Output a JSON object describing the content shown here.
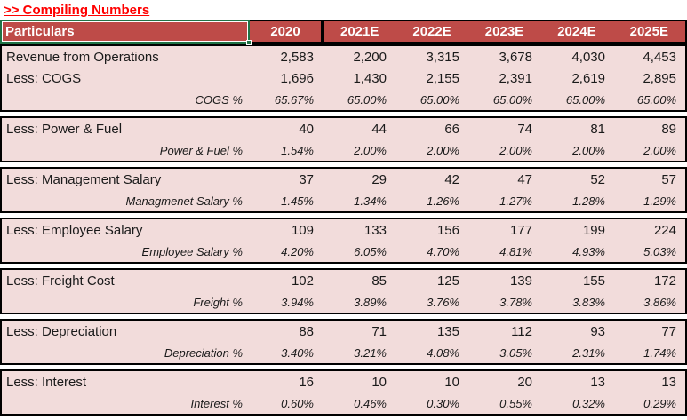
{
  "title": ">> Compiling Numbers",
  "colors": {
    "header_background": "#be4b48",
    "section_background": "#f2dcdb",
    "title_text": "#ff0000",
    "selection_border": "#217346",
    "section_border": "#000000",
    "header_text": "#ffffff"
  },
  "selection": {
    "active_cell": "Particulars"
  },
  "table": {
    "header": {
      "particulars": "Particulars",
      "years": [
        "2020",
        "2021E",
        "2022E",
        "2023E",
        "2024E",
        "2025E"
      ]
    },
    "sections": [
      {
        "rows": [
          {
            "label": "Revenue from Operations",
            "type": "value",
            "values": [
              "2,583",
              "2,200",
              "3,315",
              "3,678",
              "4,030",
              "4,453"
            ]
          },
          {
            "label": "Less: COGS",
            "type": "value",
            "values": [
              "1,696",
              "1,430",
              "2,155",
              "2,391",
              "2,619",
              "2,895"
            ]
          },
          {
            "label": "COGS %",
            "type": "percent",
            "values": [
              "65.67%",
              "65.00%",
              "65.00%",
              "65.00%",
              "65.00%",
              "65.00%"
            ]
          }
        ]
      },
      {
        "rows": [
          {
            "label": "Less: Power & Fuel",
            "type": "value",
            "values": [
              "40",
              "44",
              "66",
              "74",
              "81",
              "89"
            ]
          },
          {
            "label": "Power & Fuel %",
            "type": "percent",
            "values": [
              "1.54%",
              "2.00%",
              "2.00%",
              "2.00%",
              "2.00%",
              "2.00%"
            ]
          }
        ]
      },
      {
        "rows": [
          {
            "label": "Less: Management Salary",
            "type": "value",
            "values": [
              "37",
              "29",
              "42",
              "47",
              "52",
              "57"
            ]
          },
          {
            "label": "Managmenet Salary %",
            "type": "percent",
            "values": [
              "1.45%",
              "1.34%",
              "1.26%",
              "1.27%",
              "1.28%",
              "1.29%"
            ]
          }
        ]
      },
      {
        "rows": [
          {
            "label": "Less: Employee Salary",
            "type": "value",
            "values": [
              "109",
              "133",
              "156",
              "177",
              "199",
              "224"
            ]
          },
          {
            "label": "Employee Salary %",
            "type": "percent",
            "values": [
              "4.20%",
              "6.05%",
              "4.70%",
              "4.81%",
              "4.93%",
              "5.03%"
            ]
          }
        ]
      },
      {
        "rows": [
          {
            "label": "Less: Freight Cost",
            "type": "value",
            "values": [
              "102",
              "85",
              "125",
              "139",
              "155",
              "172"
            ]
          },
          {
            "label": "Freight %",
            "type": "percent",
            "values": [
              "3.94%",
              "3.89%",
              "3.76%",
              "3.78%",
              "3.83%",
              "3.86%"
            ]
          }
        ]
      },
      {
        "rows": [
          {
            "label": "Less: Depreciation",
            "type": "value",
            "values": [
              "88",
              "71",
              "135",
              "112",
              "93",
              "77"
            ]
          },
          {
            "label": "Depreciation %",
            "type": "percent",
            "values": [
              "3.40%",
              "3.21%",
              "4.08%",
              "3.05%",
              "2.31%",
              "1.74%"
            ]
          }
        ]
      },
      {
        "rows": [
          {
            "label": "Less: Interest",
            "type": "value",
            "values": [
              "16",
              "10",
              "10",
              "20",
              "13",
              "13"
            ]
          },
          {
            "label": "Interest %",
            "type": "percent",
            "values": [
              "0.60%",
              "0.46%",
              "0.30%",
              "0.55%",
              "0.32%",
              "0.29%"
            ]
          }
        ]
      }
    ]
  }
}
